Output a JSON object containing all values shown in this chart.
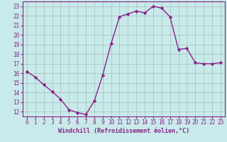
{
  "x": [
    0,
    1,
    2,
    3,
    4,
    5,
    6,
    7,
    8,
    9,
    10,
    11,
    12,
    13,
    14,
    15,
    16,
    17,
    18,
    19,
    20,
    21,
    22,
    23
  ],
  "y": [
    16.2,
    15.6,
    14.8,
    14.1,
    13.3,
    12.2,
    11.9,
    11.7,
    13.1,
    15.8,
    19.1,
    21.9,
    22.2,
    22.5,
    22.3,
    23.0,
    22.8,
    21.9,
    18.5,
    18.6,
    17.1,
    17.0,
    17.0,
    17.1
  ],
  "line_color": "#882288",
  "marker": "D",
  "marker_size": 2.2,
  "bg_color": "#c8eaea",
  "grid_color": "#aabbbb",
  "xlabel": "Windchill (Refroidissement éolien,°C)",
  "xlabel_color": "#882288",
  "tick_color": "#882288",
  "spine_color": "#882288",
  "xlim": [
    -0.5,
    23.5
  ],
  "ylim": [
    11.5,
    23.5
  ],
  "yticks": [
    12,
    13,
    14,
    15,
    16,
    17,
    18,
    19,
    20,
    21,
    22,
    23
  ],
  "xticks": [
    0,
    1,
    2,
    3,
    4,
    5,
    6,
    7,
    8,
    9,
    10,
    11,
    12,
    13,
    14,
    15,
    16,
    17,
    18,
    19,
    20,
    21,
    22,
    23
  ],
  "line_width": 1.0,
  "tick_labelsize": 5.5,
  "xlabel_fontsize": 6.0
}
